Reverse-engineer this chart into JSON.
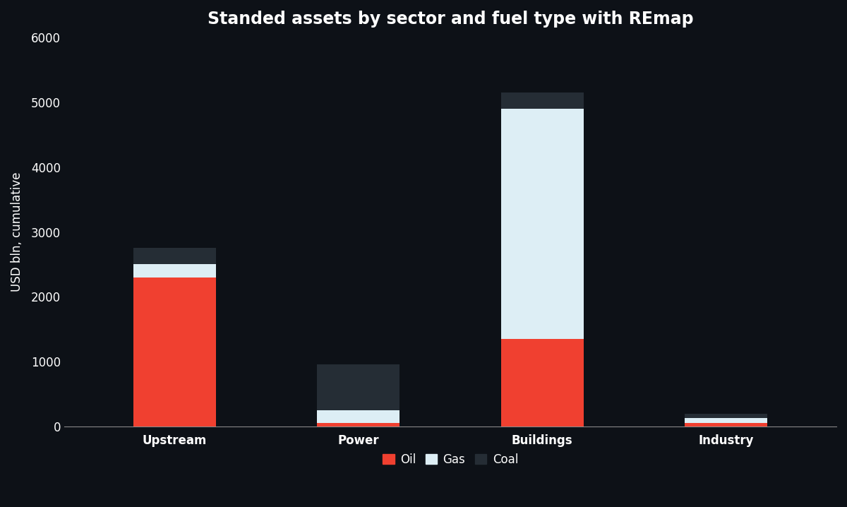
{
  "categories": [
    "Upstream",
    "Power",
    "Buildings",
    "Industry"
  ],
  "oil": [
    2300,
    50,
    1350,
    50
  ],
  "gas": [
    200,
    200,
    3550,
    80
  ],
  "coal": [
    250,
    700,
    250,
    60
  ],
  "colors": {
    "oil": "#f04030",
    "gas": "#ddeef5",
    "coal": "#252d35"
  },
  "title": "Standed assets by sector and fuel type with REmap",
  "ylabel": "USD bln, cumulative",
  "ylim": [
    0,
    6000
  ],
  "yticks": [
    0,
    1000,
    2000,
    3000,
    4000,
    5000,
    6000
  ],
  "background_color": "#0d1117",
  "text_color": "#ffffff",
  "title_fontsize": 17,
  "label_fontsize": 12,
  "tick_fontsize": 12,
  "bar_width": 0.45
}
